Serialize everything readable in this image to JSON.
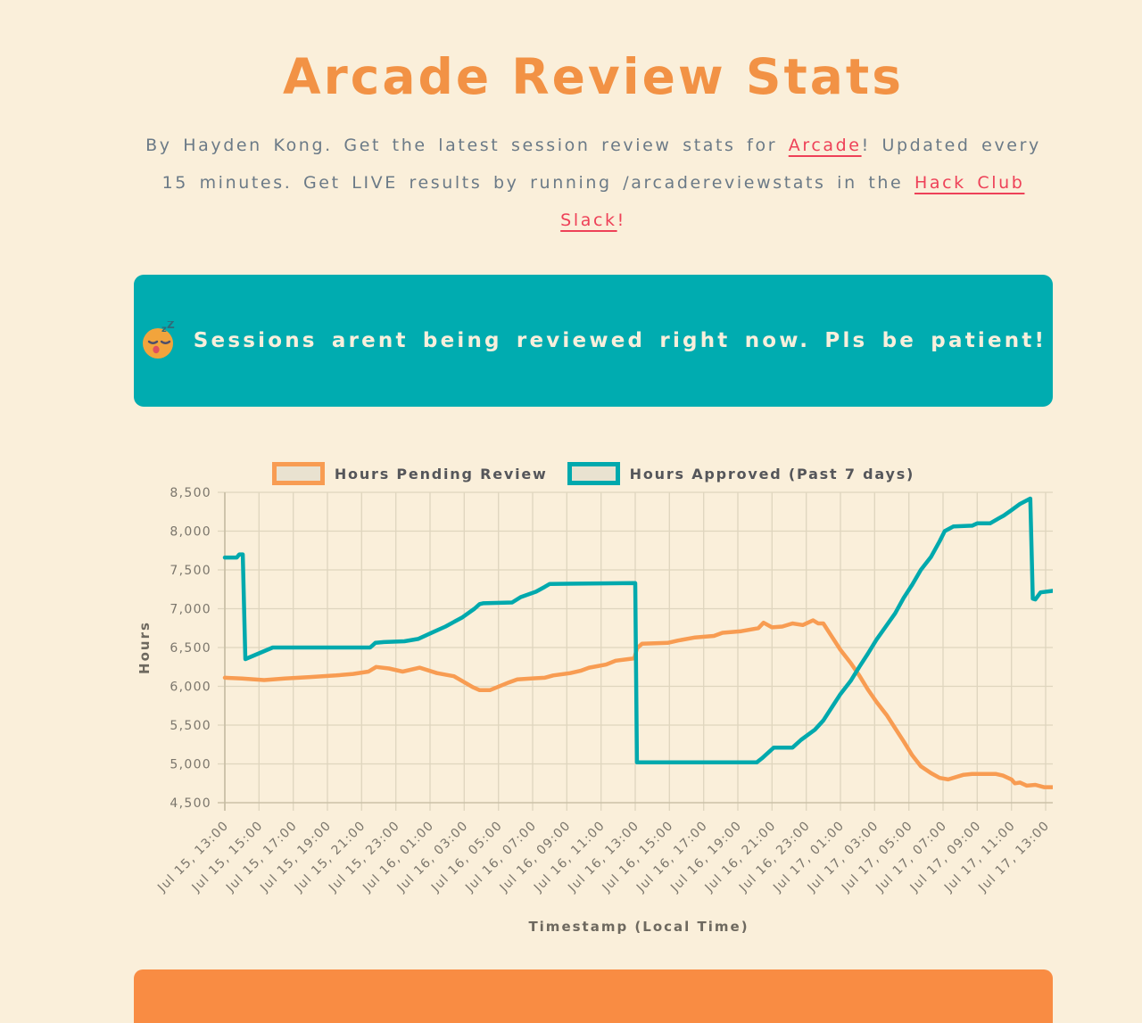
{
  "page": {
    "title": "Arcade Review Stats",
    "subtitle": {
      "part1": "By Hayden Kong. Get the latest session review stats for ",
      "link1": "Arcade",
      "part2": "! Updated every 15 minutes. Get LIVE results by running /arcadereviewstats in the ",
      "link2": "Hack Club Slack",
      "part3": "!"
    },
    "banner": {
      "emoji": "sleeping-face",
      "zzz_small": "z",
      "zzz_big": "Z",
      "text": "Sessions arent being reviewed right now. Pls be patient!"
    },
    "colors": {
      "background": "#FAEFDA",
      "title_orange": "#F29245",
      "body_gray": "#6B7A87",
      "link_red": "#EE4158",
      "banner_teal": "#00ACB0",
      "banner_text_cream": "#F8EFDC",
      "bottom_bar_orange": "#F98C43",
      "grid_line": "#DFD5BE",
      "axis_line": "#C6BCA2",
      "tick_text": "#7B766C"
    }
  },
  "chart_data": {
    "type": "line",
    "title": "",
    "xlabel": "Timestamp (Local Time)",
    "ylabel": "Hours",
    "ylim": [
      4500,
      8500
    ],
    "grid": true,
    "legend_position": "top",
    "y_ticks": [
      "8,500",
      "8,000",
      "7,500",
      "7,000",
      "6,500",
      "6,000",
      "5,500",
      "5,000",
      "4,500"
    ],
    "x_tick_interval_hours": 2,
    "x_span_hours": 48.4,
    "x_tick_labels": [
      "Jul 15, 13:00",
      "Jul 15, 15:00",
      "Jul 15, 17:00",
      "Jul 15, 19:00",
      "Jul 15, 21:00",
      "Jul 15, 23:00",
      "Jul 16, 01:00",
      "Jul 16, 03:00",
      "Jul 16, 05:00",
      "Jul 16, 07:00",
      "Jul 16, 09:00",
      "Jul 16, 11:00",
      "Jul 16, 13:00",
      "Jul 16, 15:00",
      "Jul 16, 17:00",
      "Jul 16, 19:00",
      "Jul 16, 21:00",
      "Jul 16, 23:00",
      "Jul 17, 01:00",
      "Jul 17, 03:00",
      "Jul 17, 05:00",
      "Jul 17, 07:00",
      "Jul 17, 09:00",
      "Jul 17, 11:00",
      "Jul 17, 13:00"
    ],
    "legend": [
      {
        "label": "Hours Pending Review",
        "color": "#F89C52"
      },
      {
        "label": "Hours Approved (Past 7 days)",
        "color": "#00A9AD"
      }
    ],
    "series": [
      {
        "name": "Hours Pending Review",
        "color": "#F89C52",
        "points": [
          [
            0,
            6110
          ],
          [
            1,
            6100
          ],
          [
            2.3,
            6080
          ],
          [
            3.5,
            6100
          ],
          [
            5,
            6120
          ],
          [
            6.5,
            6140
          ],
          [
            7.5,
            6160
          ],
          [
            8.4,
            6190
          ],
          [
            8.85,
            6250
          ],
          [
            9.6,
            6230
          ],
          [
            10.4,
            6190
          ],
          [
            11.4,
            6240
          ],
          [
            12.4,
            6170
          ],
          [
            13.4,
            6130
          ],
          [
            14.5,
            5990
          ],
          [
            14.9,
            5950
          ],
          [
            15.5,
            5950
          ],
          [
            16.6,
            6050
          ],
          [
            17.1,
            6090
          ],
          [
            17.9,
            6100
          ],
          [
            18.7,
            6110
          ],
          [
            19.2,
            6140
          ],
          [
            20.2,
            6170
          ],
          [
            20.8,
            6200
          ],
          [
            21.3,
            6240
          ],
          [
            21.8,
            6260
          ],
          [
            22.3,
            6280
          ],
          [
            22.85,
            6330
          ],
          [
            23.6,
            6350
          ],
          [
            23.95,
            6360
          ],
          [
            24.1,
            6490
          ],
          [
            24.4,
            6550
          ],
          [
            25.9,
            6560
          ],
          [
            26.5,
            6590
          ],
          [
            27.5,
            6630
          ],
          [
            28.6,
            6650
          ],
          [
            29.1,
            6690
          ],
          [
            30.2,
            6710
          ],
          [
            31.2,
            6750
          ],
          [
            31.5,
            6820
          ],
          [
            32.0,
            6760
          ],
          [
            32.6,
            6770
          ],
          [
            33.2,
            6810
          ],
          [
            33.8,
            6790
          ],
          [
            34.4,
            6850
          ],
          [
            34.7,
            6810
          ],
          [
            35.0,
            6810
          ],
          [
            35.5,
            6640
          ],
          [
            36.0,
            6470
          ],
          [
            36.6,
            6300
          ],
          [
            37.1,
            6140
          ],
          [
            37.6,
            5960
          ],
          [
            38.1,
            5800
          ],
          [
            38.7,
            5630
          ],
          [
            39.2,
            5460
          ],
          [
            39.7,
            5290
          ],
          [
            40.2,
            5110
          ],
          [
            40.7,
            4970
          ],
          [
            41.3,
            4880
          ],
          [
            41.8,
            4820
          ],
          [
            42.3,
            4800
          ],
          [
            43.2,
            4860
          ],
          [
            43.7,
            4870
          ],
          [
            45.1,
            4870
          ],
          [
            45.5,
            4850
          ],
          [
            46.0,
            4800
          ],
          [
            46.2,
            4750
          ],
          [
            46.5,
            4760
          ],
          [
            46.9,
            4720
          ],
          [
            47.4,
            4730
          ],
          [
            47.9,
            4700
          ],
          [
            48.4,
            4700
          ]
        ]
      },
      {
        "name": "Hours Approved (Past 7 days)",
        "color": "#00A9AD",
        "points": [
          [
            0,
            7660
          ],
          [
            0.7,
            7660
          ],
          [
            0.85,
            7700
          ],
          [
            1.05,
            7700
          ],
          [
            1.2,
            6350
          ],
          [
            2.8,
            6500
          ],
          [
            8.5,
            6500
          ],
          [
            8.8,
            6560
          ],
          [
            9.3,
            6570
          ],
          [
            10.5,
            6580
          ],
          [
            11.3,
            6610
          ],
          [
            12.2,
            6700
          ],
          [
            12.9,
            6770
          ],
          [
            13.4,
            6830
          ],
          [
            13.9,
            6890
          ],
          [
            14.6,
            7000
          ],
          [
            14.9,
            7060
          ],
          [
            15.1,
            7070
          ],
          [
            16.8,
            7080
          ],
          [
            17.3,
            7150
          ],
          [
            18.2,
            7220
          ],
          [
            18.7,
            7280
          ],
          [
            19.0,
            7320
          ],
          [
            23.9,
            7330
          ],
          [
            24.0,
            7330
          ],
          [
            24.1,
            5020
          ],
          [
            31.1,
            5020
          ],
          [
            31.4,
            5070
          ],
          [
            32.1,
            5210
          ],
          [
            33.2,
            5210
          ],
          [
            33.7,
            5310
          ],
          [
            34.5,
            5440
          ],
          [
            35.0,
            5560
          ],
          [
            35.5,
            5730
          ],
          [
            36.0,
            5900
          ],
          [
            36.6,
            6070
          ],
          [
            37.1,
            6250
          ],
          [
            37.6,
            6420
          ],
          [
            38.1,
            6600
          ],
          [
            38.65,
            6770
          ],
          [
            39.2,
            6940
          ],
          [
            39.7,
            7140
          ],
          [
            40.2,
            7310
          ],
          [
            40.7,
            7500
          ],
          [
            41.3,
            7670
          ],
          [
            41.8,
            7870
          ],
          [
            42.1,
            8000
          ],
          [
            42.6,
            8060
          ],
          [
            43.7,
            8070
          ],
          [
            44.0,
            8100
          ],
          [
            44.75,
            8100
          ],
          [
            45.3,
            8170
          ],
          [
            45.55,
            8200
          ],
          [
            46.0,
            8270
          ],
          [
            46.5,
            8350
          ],
          [
            47.1,
            8420
          ],
          [
            47.25,
            7130
          ],
          [
            47.4,
            7120
          ],
          [
            47.7,
            7210
          ],
          [
            48.4,
            7230
          ]
        ]
      }
    ]
  }
}
